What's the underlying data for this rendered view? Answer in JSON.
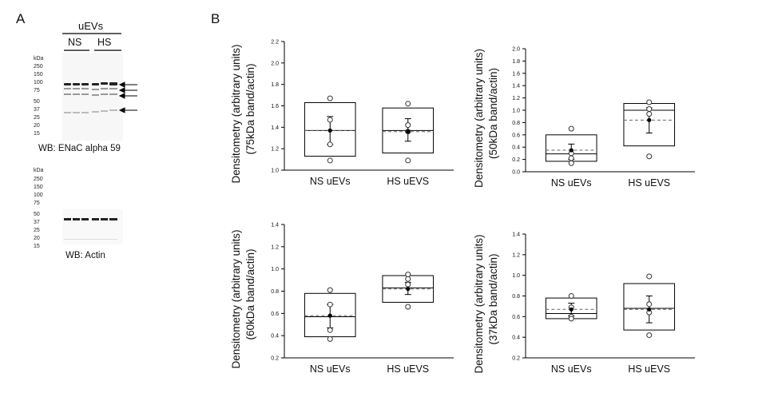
{
  "panel_a": {
    "letter": "A",
    "header": "uEVs",
    "groups": [
      "NS",
      "HS"
    ],
    "blot1": {
      "kda_label": "kDa",
      "markers": [
        "250",
        "150",
        "100",
        "75",
        "50",
        "37",
        "25",
        "20",
        "15"
      ],
      "caption": "WB:  ENaC alpha 59"
    },
    "blot2": {
      "kda_label": "kDa",
      "markers": [
        "250",
        "150",
        "100",
        "75",
        "50",
        "37",
        "25",
        "20",
        "15"
      ],
      "caption": "WB:  Actin"
    }
  },
  "panel_b": {
    "letter": "B"
  },
  "chart_data": [
    {
      "type": "box",
      "ylabel_line1": "Densitometry (arbitrary units)",
      "ylabel_line2": "(75kDa band/actin)",
      "ylim": [
        1.0,
        2.2
      ],
      "yticks": [
        "1.0",
        "1.2",
        "1.4",
        "1.6",
        "1.8",
        "2.0",
        "2.2"
      ],
      "categories": [
        "NS uEVs",
        "HS uEVS"
      ],
      "boxes": [
        {
          "q1": 1.13,
          "median": 1.37,
          "q3": 1.63,
          "mean": 1.37,
          "sem": [
            1.24,
            1.5
          ],
          "points": [
            1.67,
            1.47,
            1.24,
            1.09
          ]
        },
        {
          "q1": 1.16,
          "median": 1.37,
          "q3": 1.58,
          "mean": 1.36,
          "sem": [
            1.27,
            1.48
          ],
          "points": [
            1.62,
            1.42,
            1.36,
            1.09
          ]
        }
      ]
    },
    {
      "type": "box",
      "ylabel_line1": "Densitometry (arbitrary units)",
      "ylabel_line2": "(50kDa band/actin)",
      "ylim": [
        0.0,
        2.0
      ],
      "yticks": [
        "0.0",
        "0.2",
        "0.4",
        "0.6",
        "0.8",
        "1.0",
        "1.2",
        "1.4",
        "1.6",
        "1.8",
        "2.0"
      ],
      "categories": [
        "NS uEVs",
        "HS uEVS"
      ],
      "boxes": [
        {
          "q1": 0.17,
          "median": 0.29,
          "q3": 0.6,
          "mean": 0.35,
          "sem": [
            0.2,
            0.45
          ],
          "points": [
            0.7,
            0.3,
            0.22,
            0.14
          ]
        },
        {
          "q1": 0.42,
          "median": 1.0,
          "q3": 1.11,
          "mean": 0.84,
          "sem": [
            0.63,
            1.04
          ],
          "points": [
            1.13,
            1.02,
            0.94,
            0.25
          ]
        }
      ]
    },
    {
      "type": "box",
      "ylabel_line1": "Densitometry (arbitrary units)",
      "ylabel_line2": "(60kDa band/actin)",
      "ylim": [
        0.2,
        1.4
      ],
      "yticks": [
        "0.2",
        "0.4",
        "0.6",
        "0.8",
        "1.0",
        "1.2",
        "1.4"
      ],
      "categories": [
        "NS uEVs",
        "HS uEVS"
      ],
      "boxes": [
        {
          "q1": 0.39,
          "median": 0.57,
          "q3": 0.78,
          "mean": 0.58,
          "sem": [
            0.47,
            0.68
          ],
          "points": [
            0.81,
            0.68,
            0.45,
            0.37
          ]
        },
        {
          "q1": 0.7,
          "median": 0.83,
          "q3": 0.94,
          "mean": 0.82,
          "sem": [
            0.77,
            0.88
          ],
          "points": [
            0.95,
            0.91,
            0.86,
            0.66
          ]
        }
      ]
    },
    {
      "type": "box",
      "ylabel_line1": "Densitometry (arbitrary units)",
      "ylabel_line2": "(37kDa band/actin)",
      "ylim": [
        0.2,
        1.4
      ],
      "yticks": [
        "0.2",
        "0.4",
        "0.6",
        "0.8",
        "1.0",
        "1.2",
        "1.4"
      ],
      "categories": [
        "NS uEVs",
        "HS uEVS"
      ],
      "boxes": [
        {
          "q1": 0.58,
          "median": 0.63,
          "q3": 0.78,
          "mean": 0.67,
          "sem": [
            0.61,
            0.73
          ],
          "points": [
            0.8,
            0.69,
            0.6,
            0.58
          ]
        },
        {
          "q1": 0.47,
          "median": 0.68,
          "q3": 0.92,
          "mean": 0.67,
          "sem": [
            0.54,
            0.8
          ],
          "points": [
            0.99,
            0.72,
            0.64,
            0.42
          ]
        }
      ]
    }
  ]
}
